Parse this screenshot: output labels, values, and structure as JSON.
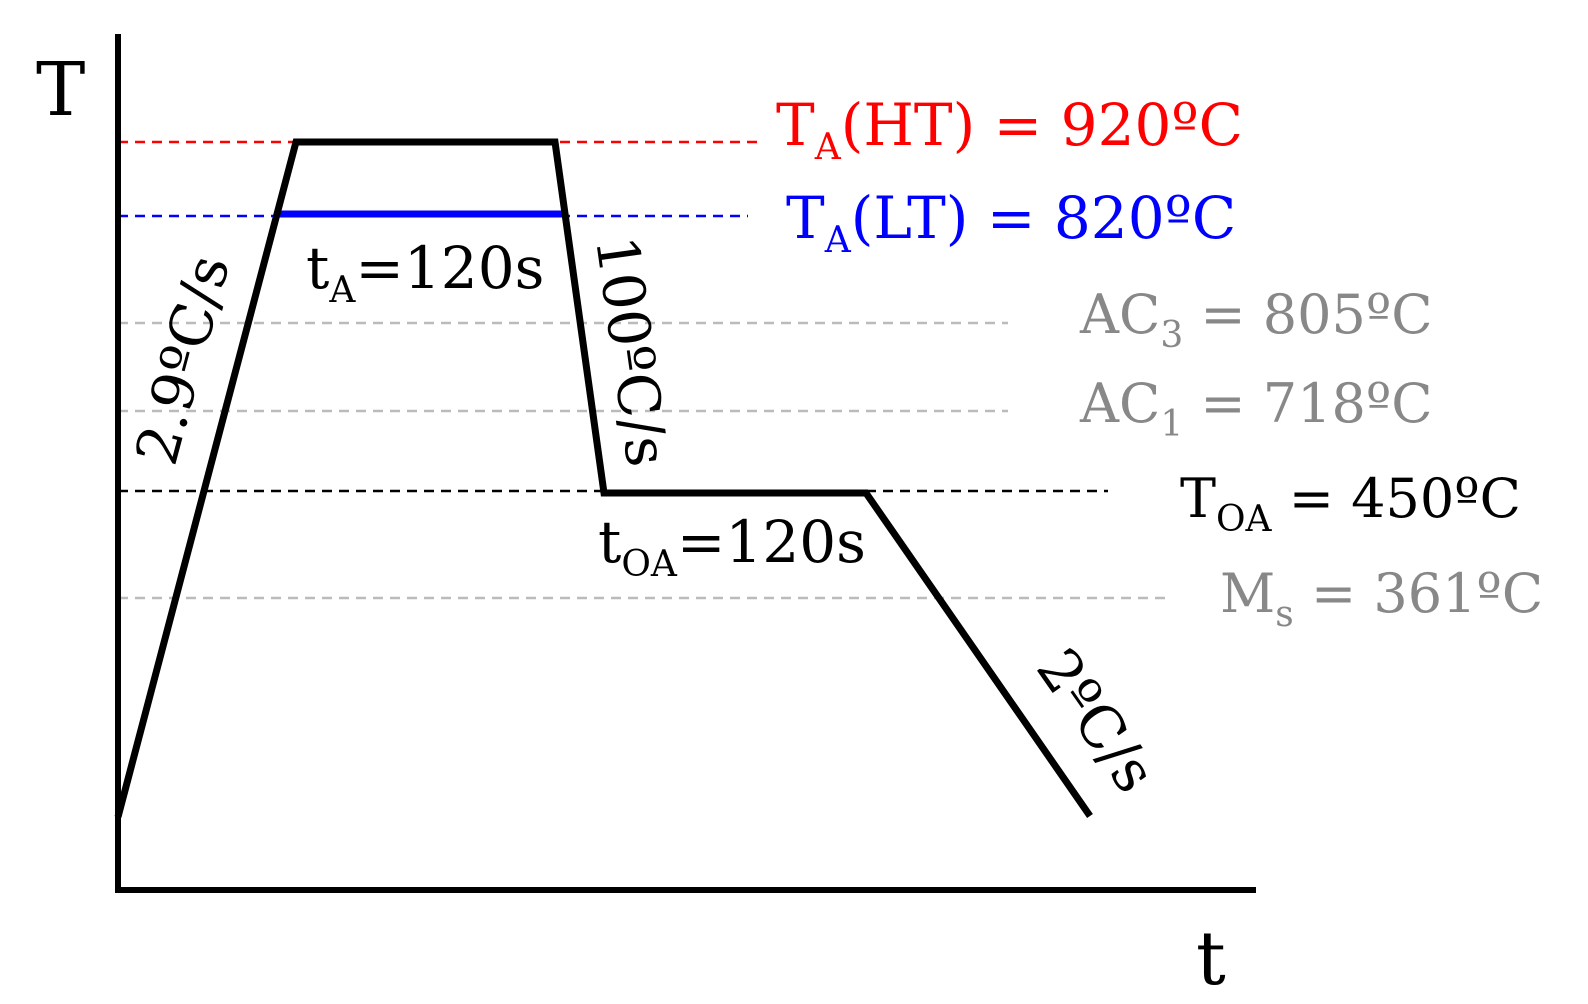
{
  "axes": {
    "y_label": "T",
    "x_label": "t"
  },
  "temperature_levels": [
    {
      "key": "ta_ht",
      "main": "T",
      "sub": "A",
      "rest": "(HT) = 920ºC",
      "color": "#ff0000"
    },
    {
      "key": "ta_lt",
      "main": "T",
      "sub": "A",
      "rest": "(LT) = 820ºC",
      "color": "#0000ff"
    },
    {
      "key": "ac3",
      "main": "AC",
      "sub": "3",
      "rest": " = 805ºC",
      "color": "#888888"
    },
    {
      "key": "ac1",
      "main": "AC",
      "sub": "1",
      "rest": " = 718ºC",
      "color": "#888888"
    },
    {
      "key": "toa",
      "main": "T",
      "sub": "OA",
      "rest": " = 450ºC",
      "color": "#000000"
    },
    {
      "key": "ms",
      "main": "M",
      "sub": "s",
      "rest": " = 361ºC",
      "color": "#888888"
    }
  ],
  "segment_labels": {
    "heating_rate": "2.9ºC/s",
    "quench_rate": "100ºC/s",
    "final_cooling_rate": "2ºC/s",
    "ta_time": {
      "main": "t",
      "sub": "A",
      "rest": "=120s"
    },
    "toa_time": {
      "main": "t",
      "sub": "OA",
      "rest": "=120s"
    }
  },
  "colors": {
    "profile": "#000000",
    "ht_line": "#ff0000",
    "lt_line": "#0000ff",
    "reference": "#bbbbbb"
  }
}
